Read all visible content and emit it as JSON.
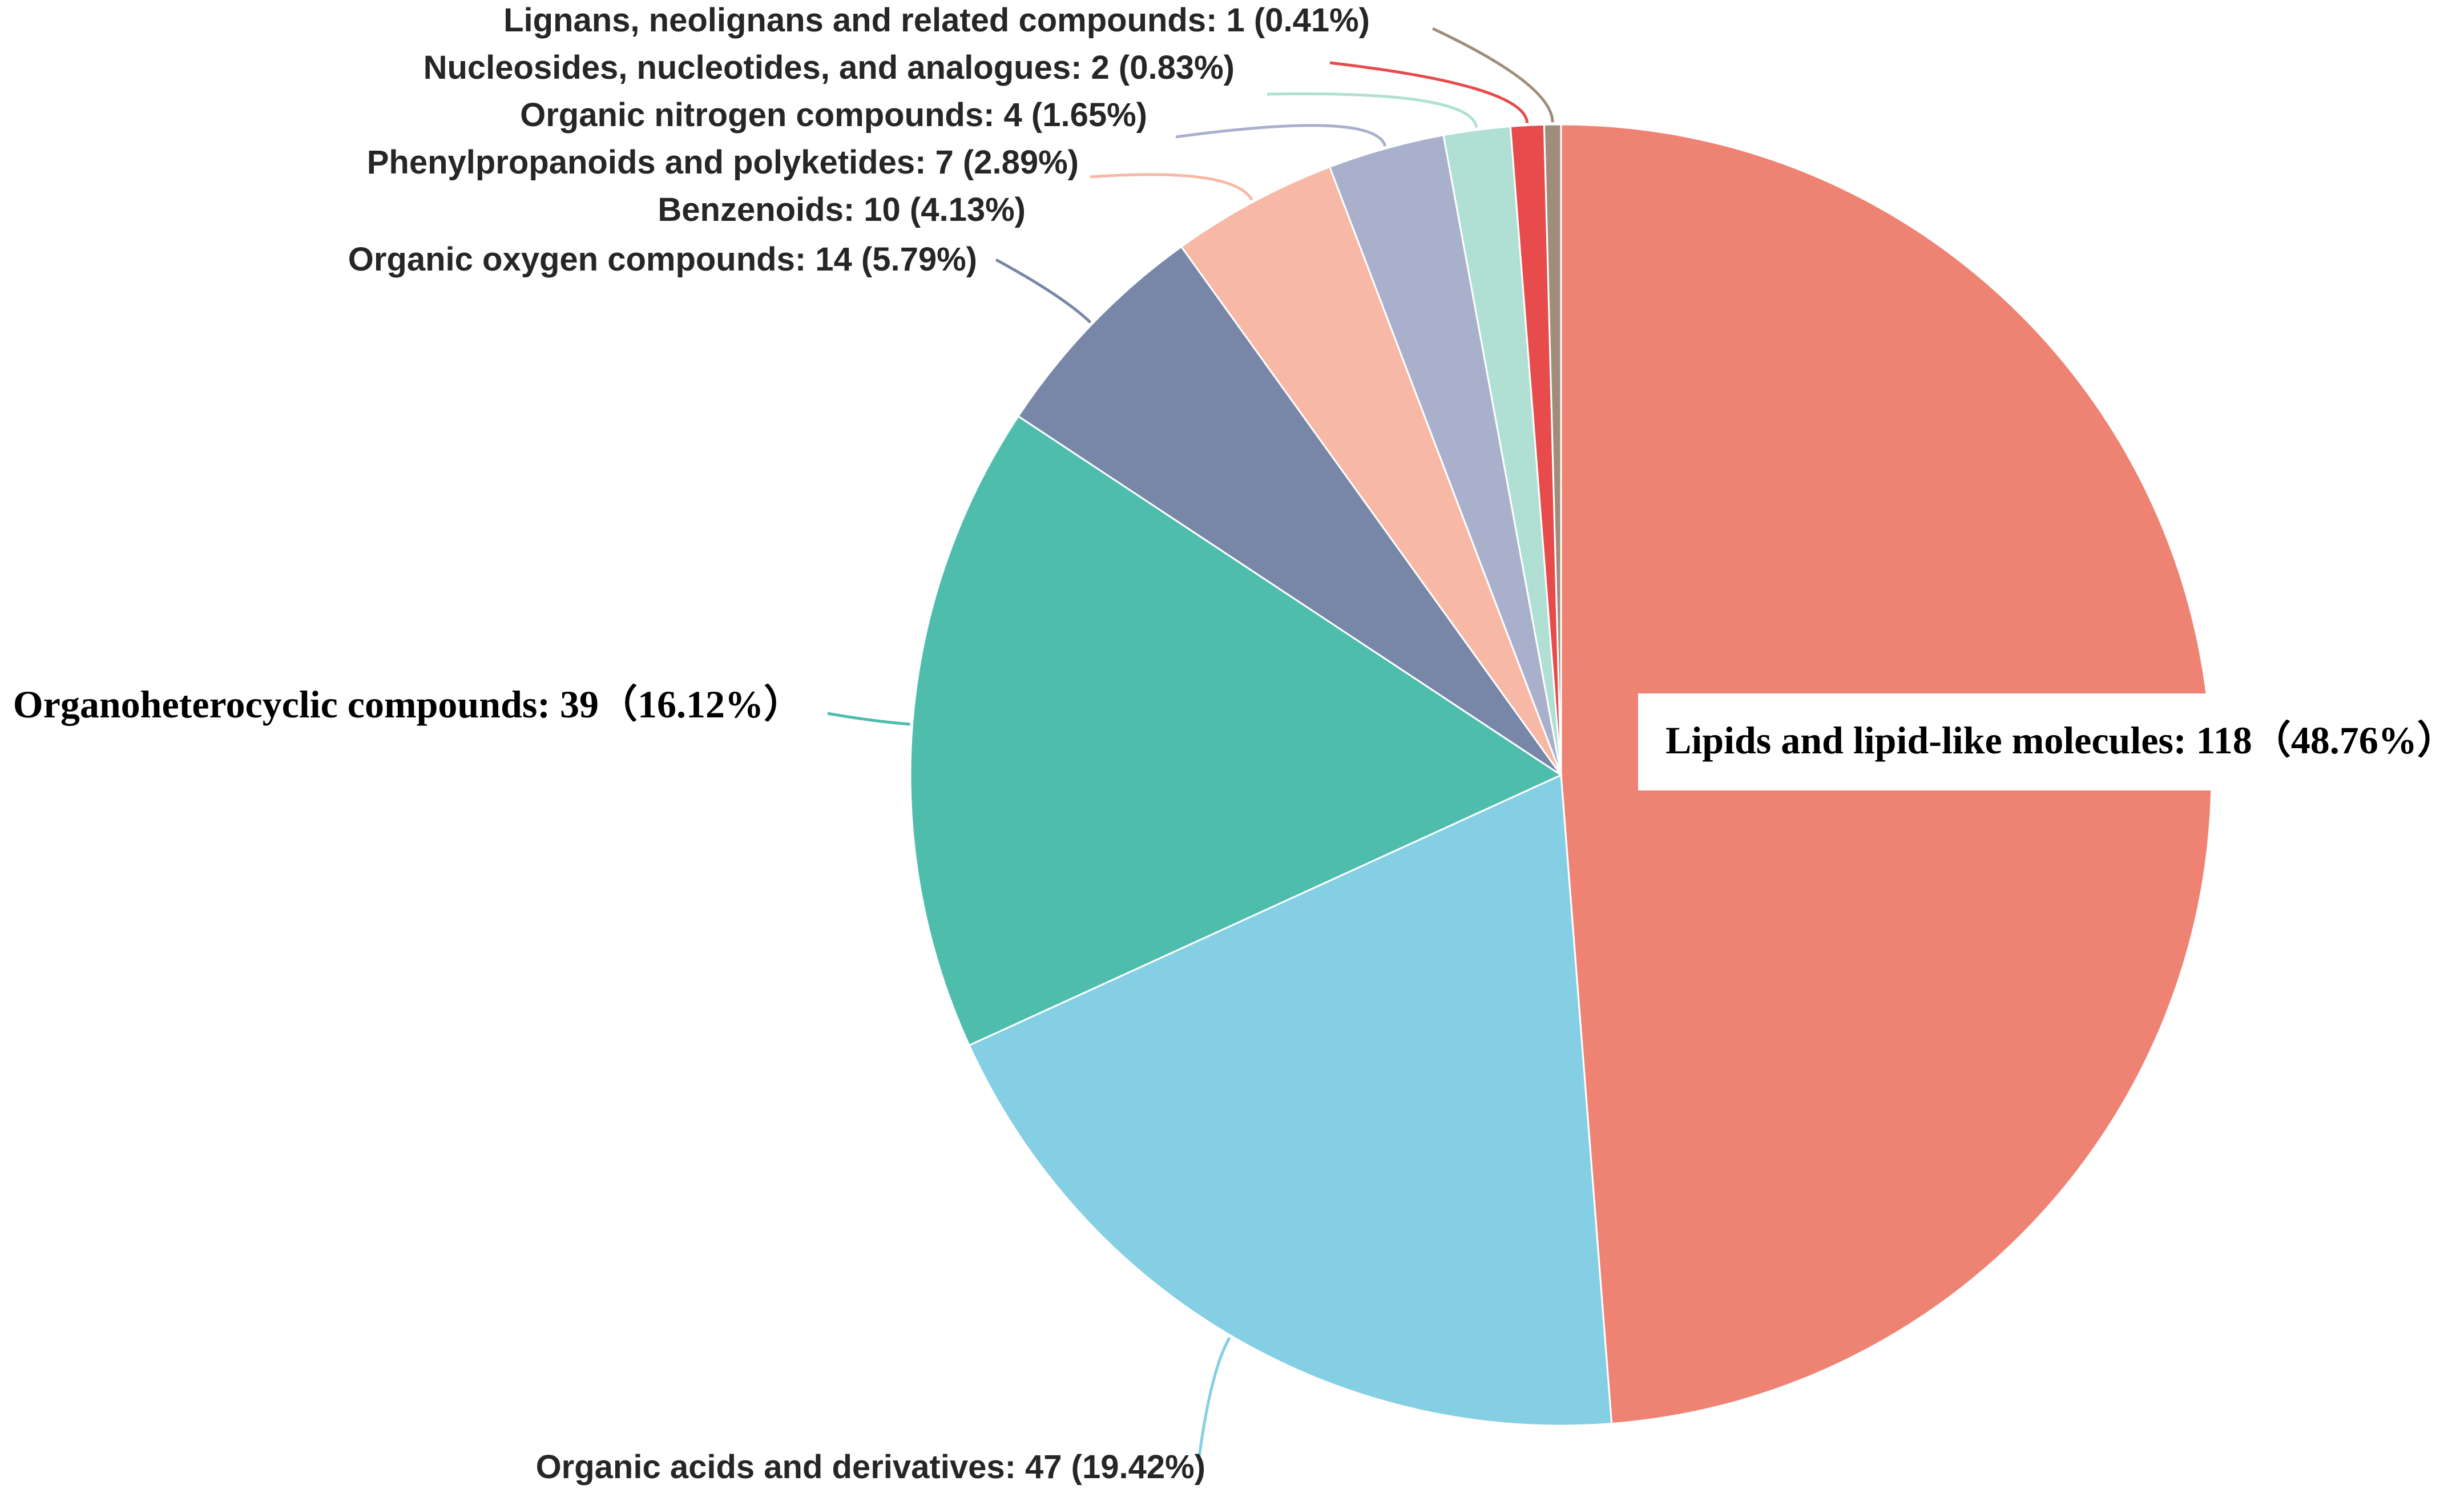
{
  "chart_data": {
    "type": "pie",
    "title": "",
    "unit": "compounds",
    "slices": [
      {
        "name": "Lipids and lipid-like molecules",
        "value": 118,
        "percent": "48.76%",
        "label": "Lipids and lipid-like molecules: 118（48.76%）",
        "color": "#EE8373"
      },
      {
        "name": "Organic acids and derivatives",
        "value": 47,
        "percent": "19.42%",
        "label": "Organic acids and derivatives: 47 (19.42%)",
        "color": "#85CFE4"
      },
      {
        "name": "Organoheterocyclic compounds",
        "value": 39,
        "percent": "16.12%",
        "label": "Organoheterocyclic compounds: 39（16.12%）",
        "color": "#4EBDAC"
      },
      {
        "name": "Organic oxygen compounds",
        "value": 14,
        "percent": "5.79%",
        "label": "Organic oxygen compounds: 14 (5.79%)",
        "color": "#7886A8"
      },
      {
        "name": "Benzenoids",
        "value": 10,
        "percent": "4.13%",
        "label": "Benzenoids: 10 (4.13%)",
        "color": "#F7B8A6"
      },
      {
        "name": "Phenylpropanoids and polyketides",
        "value": 7,
        "percent": "2.89%",
        "label": "Phenylpropanoids and polyketides: 7 (2.89%)",
        "color": "#A8B0CC"
      },
      {
        "name": "Organic nitrogen compounds",
        "value": 4,
        "percent": "1.65%",
        "label": "Organic nitrogen compounds: 4 (1.65%)",
        "color": "#B0E0D3"
      },
      {
        "name": "Nucleosides, nucleotides, and analogues",
        "value": 2,
        "percent": "0.83%",
        "label": "Nucleosides, nucleotides, and analogues: 2 (0.83%)",
        "color": "#E74B4B"
      },
      {
        "name": "Lignans, neolignans and related compounds",
        "value": 1,
        "percent": "0.41%",
        "label": "Lignans, neolignans and related compounds: 1 (0.41%)",
        "color": "#A08C7A"
      }
    ]
  }
}
